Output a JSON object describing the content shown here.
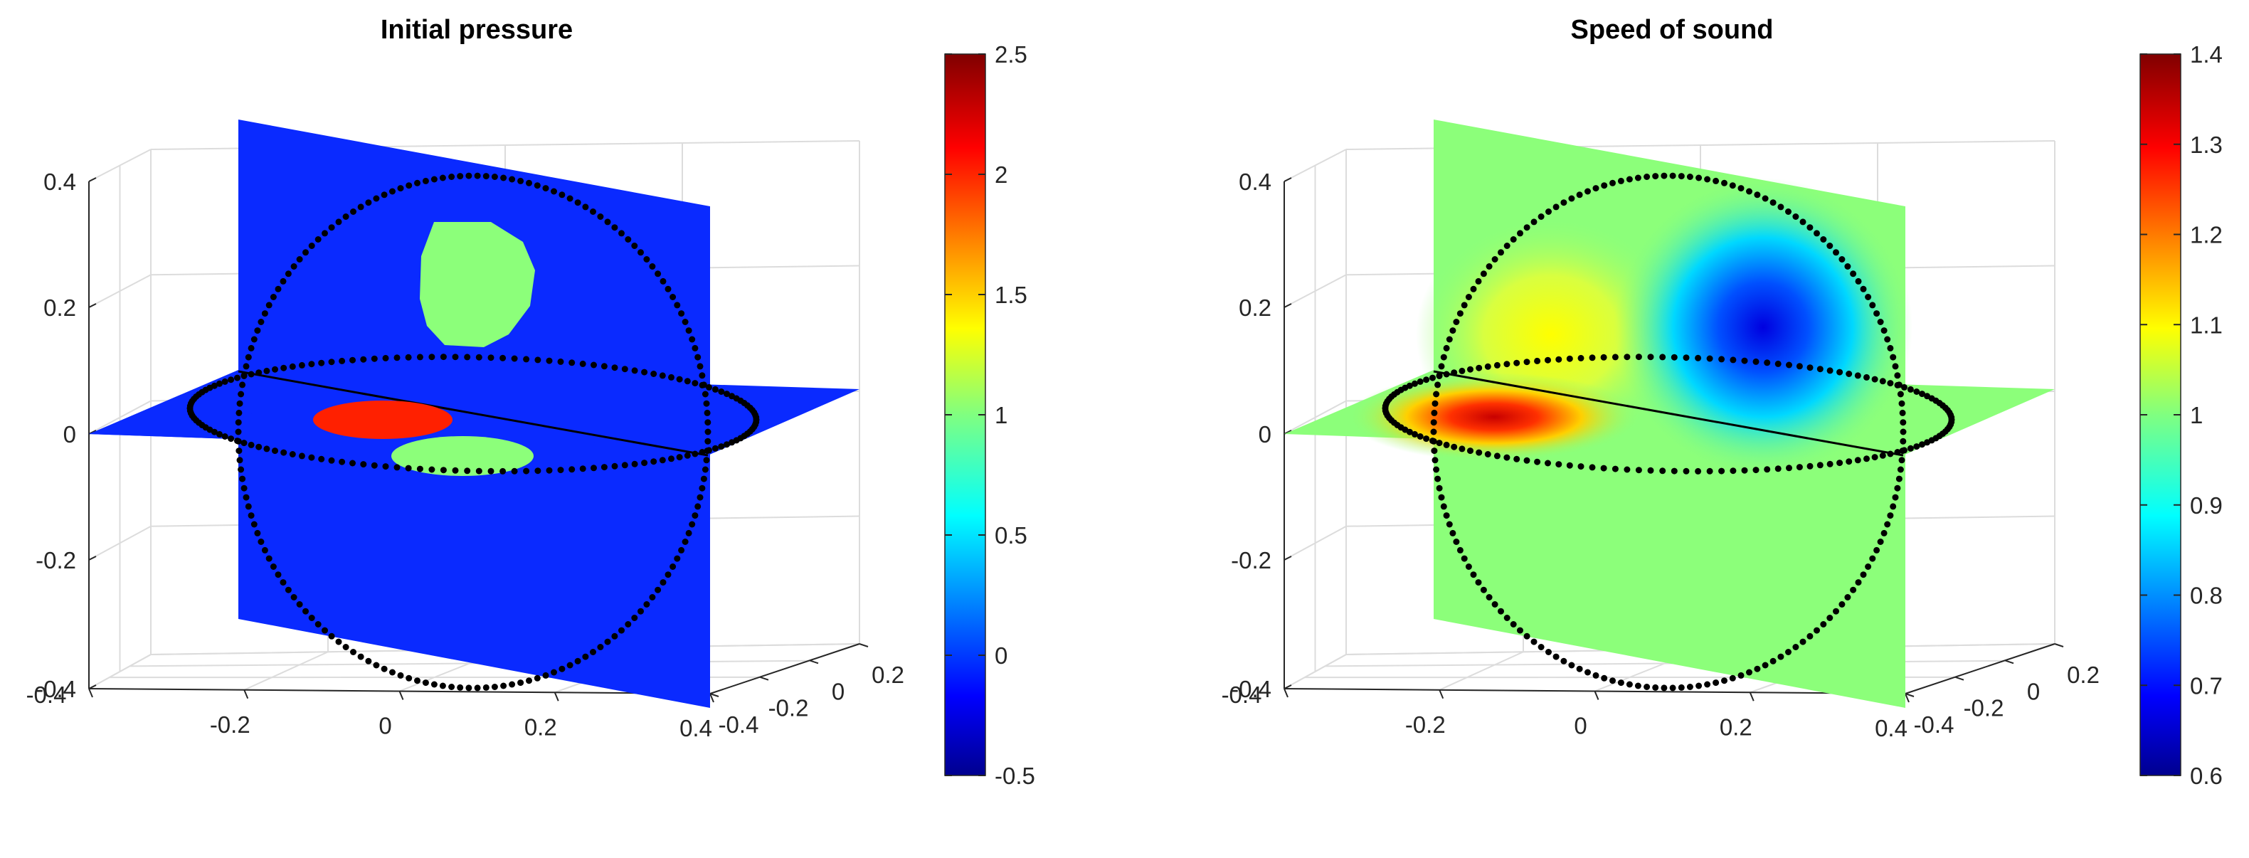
{
  "chart_data": [
    {
      "type": "3d-slice",
      "title": "Initial pressure",
      "x_ticks": [
        "-0.4",
        "-0.2",
        "0",
        "0.2",
        "0.4"
      ],
      "y_ticks": [
        "-0.4",
        "-0.2",
        "0",
        "0.2"
      ],
      "z_ticks": [
        "-0.4",
        "-0.2",
        "0",
        "0.2",
        "0.4"
      ],
      "xlim": [
        -0.4,
        0.4
      ],
      "ylim": [
        -0.4,
        0.3
      ],
      "zlim": [
        -0.4,
        0.4
      ],
      "grid": true,
      "colorbar": {
        "colormap": "jet",
        "range": [
          -0.5,
          2.5
        ],
        "ticks": [
          "2.5",
          "2",
          "1.5",
          "1",
          "0.5",
          "0",
          "-0.5"
        ]
      },
      "background_value": 0,
      "features": [
        {
          "plane": "vertical",
          "shape": "disk",
          "value": 1
        },
        {
          "plane": "horizontal",
          "shape": "disk",
          "value": 2
        },
        {
          "plane": "horizontal",
          "shape": "disk",
          "value": 1
        }
      ],
      "sensor": {
        "shape": "sphere",
        "radius": 0.4,
        "marker": "dots",
        "color": "#000000"
      }
    },
    {
      "type": "3d-slice",
      "title": "Speed of sound",
      "x_ticks": [
        "-0.4",
        "-0.2",
        "0",
        "0.2",
        "0.4"
      ],
      "y_ticks": [
        "-0.4",
        "-0.2",
        "0",
        "0.2"
      ],
      "z_ticks": [
        "-0.4",
        "-0.2",
        "0",
        "0.2",
        "0.4"
      ],
      "xlim": [
        -0.4,
        0.4
      ],
      "ylim": [
        -0.4,
        0.3
      ],
      "zlim": [
        -0.4,
        0.4
      ],
      "grid": true,
      "colorbar": {
        "colormap": "jet",
        "range": [
          0.6,
          1.4
        ],
        "ticks": [
          "1.4",
          "1.3",
          "1.2",
          "1.1",
          "1",
          "0.9",
          "0.8",
          "0.7",
          "0.6"
        ]
      },
      "background_value": 1,
      "features": [
        {
          "plane": "horizontal",
          "shape": "gaussian",
          "value": 1.35
        },
        {
          "plane": "vertical",
          "shape": "gaussian",
          "value": 1.12
        },
        {
          "plane": "vertical",
          "shape": "gaussian",
          "value": 0.68
        }
      ],
      "sensor": {
        "shape": "sphere",
        "radius": 0.4,
        "marker": "dots",
        "color": "#000000"
      }
    }
  ],
  "colors": {
    "jet_dark_blue": "#00008f",
    "jet_blue": "#0a2aff",
    "jet_cyan": "#00ffff",
    "jet_green": "#8cff7a",
    "jet_yellow": "#ffff00",
    "jet_red": "#ff2000",
    "jet_dark_red": "#800000",
    "axis": "#262626",
    "grid": "#dcdcdc"
  }
}
